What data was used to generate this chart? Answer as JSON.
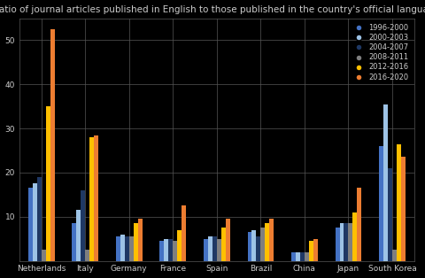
{
  "title": "Ratio of journal articles published in English to those published in the country's official language",
  "categories": [
    "Netherlands",
    "Italy",
    "Germany",
    "France",
    "Spain",
    "Brazil",
    "China",
    "Japan",
    "South Korea"
  ],
  "series_labels": [
    "1996-2000",
    "2000-2003",
    "2004-2007",
    "2008-2011",
    "2012-2016",
    "2016-2020"
  ],
  "series_colors": [
    "#4472C4",
    "#9DC3E6",
    "#1F3864",
    "#7F7F7F",
    "#FFC000",
    "#ED7D31"
  ],
  "data": [
    [
      16.5,
      8.5,
      5.5,
      4.5,
      5.0,
      6.5,
      2.0,
      7.5,
      26.0
    ],
    [
      17.5,
      11.5,
      6.0,
      5.0,
      5.5,
      7.0,
      2.0,
      8.5,
      35.5
    ],
    [
      19.0,
      16.0,
      5.5,
      5.0,
      5.5,
      5.5,
      2.0,
      8.5,
      21.0
    ],
    [
      2.5,
      2.5,
      5.5,
      4.5,
      5.0,
      7.5,
      2.0,
      8.5,
      2.5
    ],
    [
      35.0,
      28.0,
      8.5,
      7.0,
      7.5,
      8.5,
      4.5,
      11.0,
      26.5
    ],
    [
      52.5,
      28.5,
      9.5,
      12.5,
      9.5,
      9.5,
      5.0,
      16.5,
      23.5
    ]
  ],
  "ylim": [
    0,
    55
  ],
  "yticks": [
    10,
    20,
    30,
    40,
    50
  ],
  "background_color": "#000000",
  "grid_color": "#555555",
  "text_color": "#CCCCCC",
  "title_fontsize": 7.5,
  "tick_fontsize": 6.5,
  "legend_fontsize": 6
}
